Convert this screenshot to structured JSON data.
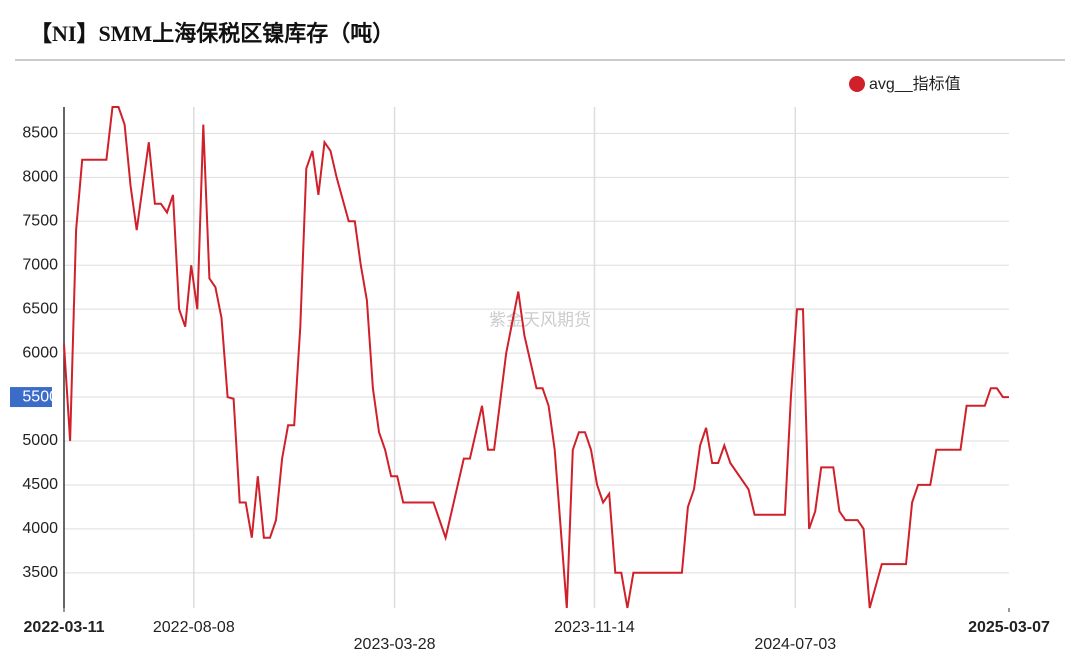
{
  "chart_data": {
    "type": "line",
    "title": "【NI】SMM上海保税区镍库存（吨）",
    "watermark": "紫金天风期货",
    "x": [
      "2022-03-11",
      "2022-03-18",
      "2022-03-25",
      "2022-04-01",
      "2022-04-29",
      "2022-05-06",
      "2022-05-13",
      "2022-05-20",
      "2022-05-27",
      "2022-06-03",
      "2022-06-17",
      "2022-06-24",
      "2022-07-01",
      "2022-07-08",
      "2022-07-15",
      "2022-07-22",
      "2022-07-29",
      "2022-08-05",
      "2022-08-12",
      "2022-08-19",
      "2022-08-26",
      "2022-09-02",
      "2022-09-09",
      "2022-09-16",
      "2022-09-23",
      "2022-09-30",
      "2022-10-07",
      "2022-10-14",
      "2022-10-21",
      "2022-10-28",
      "2022-11-04",
      "2022-11-11",
      "2022-11-18",
      "2022-11-25",
      "2022-12-02",
      "2022-12-09",
      "2022-12-16",
      "2022-12-23",
      "2022-12-30",
      "2023-01-06",
      "2023-01-13",
      "2023-01-20",
      "2023-02-03",
      "2023-02-10",
      "2023-02-17",
      "2023-02-24",
      "2023-03-03",
      "2023-03-10",
      "2023-03-17",
      "2023-03-24",
      "2023-03-31",
      "2023-04-07",
      "2023-05-12",
      "2023-05-26",
      "2023-06-16",
      "2023-06-23",
      "2023-07-07",
      "2023-07-14",
      "2023-07-21",
      "2023-08-04",
      "2023-08-18",
      "2023-08-25",
      "2023-09-08",
      "2023-09-15",
      "2023-09-22",
      "2023-09-29",
      "2023-10-13",
      "2023-10-20",
      "2023-10-27",
      "2023-11-03",
      "2023-11-10",
      "2023-11-17",
      "2023-11-24",
      "2023-12-01",
      "2023-12-08",
      "2023-12-15",
      "2023-12-22",
      "2023-12-29",
      "2024-02-23",
      "2024-03-01",
      "2024-03-08",
      "2024-03-15",
      "2024-03-22",
      "2024-03-29",
      "2024-04-05",
      "2024-04-12",
      "2024-04-19",
      "2024-05-10",
      "2024-05-17",
      "2024-06-21",
      "2024-06-28",
      "2024-07-05",
      "2024-07-12",
      "2024-07-19",
      "2024-07-26",
      "2024-08-02",
      "2024-08-16",
      "2024-08-23",
      "2024-08-30",
      "2024-09-13",
      "2024-09-20",
      "2024-09-27",
      "2024-10-11",
      "2024-11-08",
      "2024-11-15",
      "2024-11-22",
      "2024-12-06",
      "2024-12-13",
      "2025-01-10",
      "2025-01-17",
      "2025-02-07",
      "2025-02-14",
      "2025-02-21",
      "2025-02-28",
      "2025-03-07"
    ],
    "series": [
      {
        "name": "avg__指标值",
        "color": "#d0202a",
        "values": [
          6100,
          5000,
          7400,
          8200,
          8200,
          8800,
          8800,
          8600,
          7900,
          7400,
          8400,
          7700,
          7700,
          7600,
          7800,
          6500,
          6300,
          7000,
          6500,
          8600,
          6850,
          6750,
          6400,
          5500,
          5480,
          4300,
          4300,
          3900,
          4600,
          3900,
          3900,
          4100,
          4800,
          5180,
          5180,
          6300,
          8100,
          8300,
          7800,
          8400,
          8300,
          8000,
          7500,
          7500,
          7000,
          6600,
          5600,
          5100,
          4900,
          4600,
          4600,
          4300,
          4300,
          3900,
          4800,
          4800,
          5400,
          4900,
          4900,
          6000,
          6700,
          6200,
          5600,
          5600,
          5400,
          4900,
          3100,
          4900,
          5100,
          5100,
          4900,
          4500,
          4300,
          4400,
          3500,
          3500,
          3100,
          3500,
          3500,
          4250,
          4450,
          4950,
          5150,
          4750,
          4750,
          4950,
          4750,
          4450,
          4160,
          4160,
          5500,
          6500,
          6500,
          4000,
          4200,
          4700,
          4700,
          4200,
          4100,
          4100,
          4000,
          3100,
          3600,
          3600,
          4300,
          4500,
          4500,
          4900,
          4900,
          5400,
          5400,
          5600,
          5600,
          5500,
          5500
        ]
      }
    ],
    "xlim": [
      "2022-03-11",
      "2025-03-07"
    ],
    "xticks": [
      "2022-03-11",
      "2022-08-08",
      "2023-03-28",
      "2023-11-14",
      "2024-07-03",
      "2025-03-07"
    ],
    "ylim": [
      3100,
      8800
    ],
    "yticks": [
      3500,
      4000,
      4500,
      5000,
      5500,
      6000,
      6500,
      7000,
      7500,
      8000,
      8500
    ],
    "highlight_ytick": 5500,
    "grid": true,
    "legend": "top-right"
  }
}
